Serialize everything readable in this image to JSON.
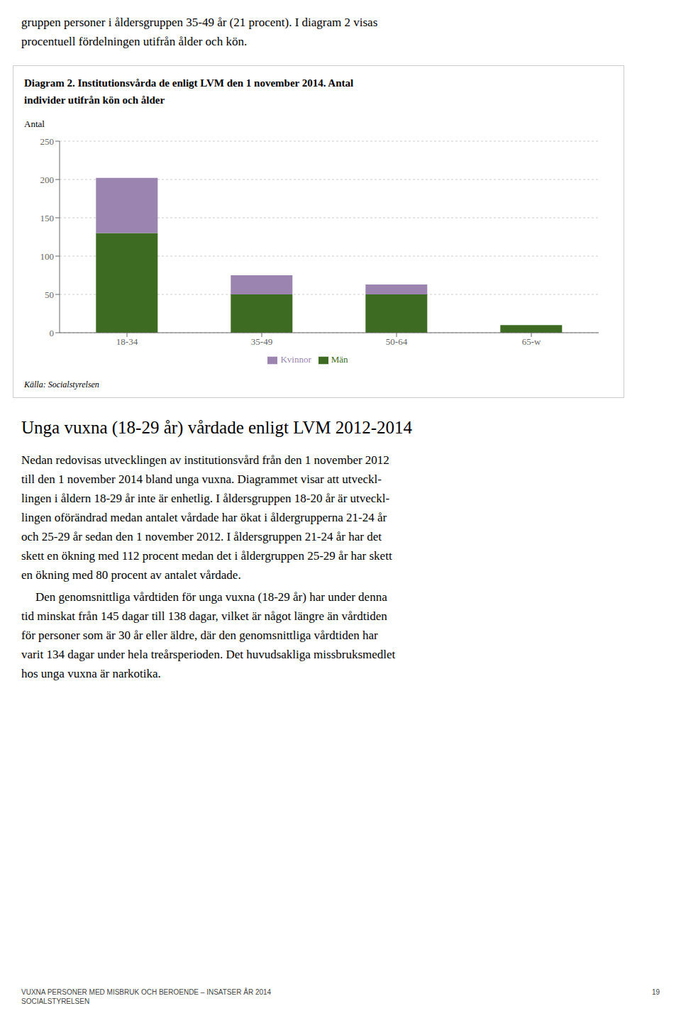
{
  "chart_data": {
    "type": "bar",
    "title": "Diagram 2. Institutionsvårda de enligt LVM den 1 november 2014. Antal\nindivider utifrån kön och ålder",
    "ylabel": "Antal",
    "categories": [
      "18-34",
      "35-49",
      "50-64",
      "65-w"
    ],
    "series": [
      {
        "name": "Män",
        "color": "#3d6b21",
        "values": [
          130,
          50,
          50,
          10
        ]
      },
      {
        "name": "Kvinnor",
        "color": "#9b84b0",
        "values": [
          72,
          25,
          13,
          0
        ]
      }
    ],
    "stacked": true,
    "ylim": [
      0,
      250
    ],
    "yticks": [
      0,
      50,
      100,
      150,
      200,
      250
    ],
    "grid": true,
    "legend": "bottom",
    "annotations": [
      "Källa: Socialstyrelsen"
    ]
  },
  "page_text": {
    "before": [
      "gruppen personer i åldersgruppen 35-49 år (21 procent). I diagram 2 visas",
      "procentuell fördelningen utifrån ålder och kön."
    ],
    "heading": "Unga vuxna (18-29 år) vårdade enligt LVM 2012-2014",
    "paragraphs": [
      [
        "Nedan redovisas utvecklingen av institutionsvård från den 1 november 2012",
        "till den 1 november 2014 bland unga vuxna. Diagrammet visar att utveckl-",
        "lingen i åldern 18-29 år inte är enhetlig. I åldersgruppen 18-20 år är utveckl-",
        "lingen oförändrad medan antalet vårdade har ökat i åldergrupperna 21-24 år",
        "och 25-29 år sedan den 1 november 2012. I åldersgruppen 21-24 år har det",
        "skett en ökning med 112 procent medan det i åldergruppen 25-29 år har skett",
        "en ökning med 80 procent av antalet vårdade."
      ],
      [
        "Den genomsnittliga vårdtiden för unga vuxna (18-29 år) har under denna",
        "tid minskat från 145 dagar till 138 dagar, vilket är något längre än vårdtiden",
        "för personer som är 30 år eller äldre, där den genomsnittliga vårdtiden har",
        "varit 134 dagar under hela treårsperioden. Det huvudsakliga missbruksmedlet",
        "hos unga vuxna är narkotika."
      ]
    ],
    "footer_left": [
      "VUXNA PERSONER MED MISBRUK OCH BEROENDE – INSATSER ÅR 2014",
      "SOCIALSTYRELSEN"
    ],
    "footer_right": "19"
  }
}
